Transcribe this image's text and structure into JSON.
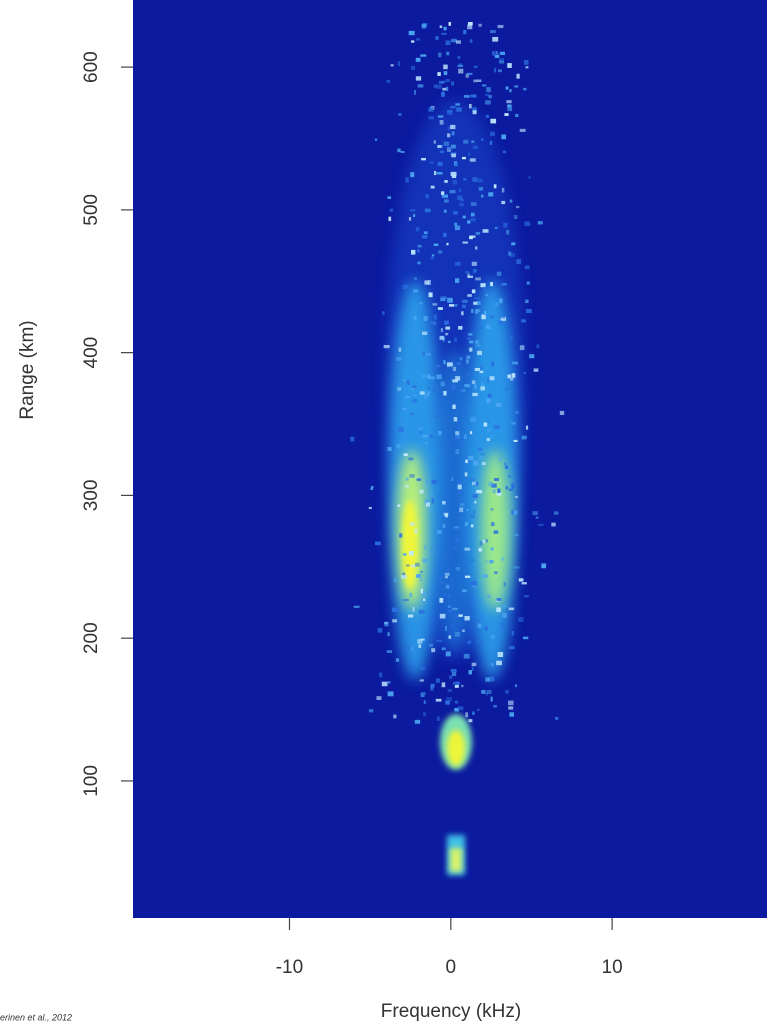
{
  "chart_data": {
    "type": "spectrogram",
    "x_label": "Frequency (kHz)",
    "y_label": "Range (km)",
    "xlim": [
      -19.7,
      19.6
    ],
    "xticks": [
      -10,
      0,
      10
    ],
    "ylim": [
      4,
      647
    ],
    "yticks": [
      100,
      200,
      300,
      400,
      500,
      600
    ],
    "background_color": "#0b1a9e",
    "citation": "erinen et al., 2012"
  }
}
